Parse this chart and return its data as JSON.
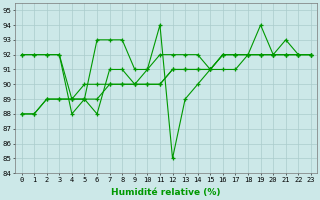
{
  "xlabel": "Humidité relative (%)",
  "ylabel": "",
  "xlim": [
    -0.5,
    23.5
  ],
  "ylim": [
    84,
    95.5
  ],
  "yticks": [
    84,
    85,
    86,
    87,
    88,
    89,
    90,
    91,
    92,
    93,
    94,
    95
  ],
  "xticks": [
    0,
    1,
    2,
    3,
    4,
    5,
    6,
    7,
    8,
    9,
    10,
    11,
    12,
    13,
    14,
    15,
    16,
    17,
    18,
    19,
    20,
    21,
    22,
    23
  ],
  "bg_color": "#cce8e8",
  "grid_color": "#aacccc",
  "line_color": "#009900",
  "lines": [
    [
      92,
      92,
      92,
      92,
      89,
      89,
      93,
      93,
      93,
      91,
      91,
      94,
      85,
      89,
      90,
      91,
      92,
      92,
      92,
      94,
      92,
      93,
      92,
      92
    ],
    [
      92,
      92,
      92,
      92,
      88,
      89,
      88,
      91,
      91,
      90,
      91,
      92,
      92,
      92,
      92,
      91,
      92,
      92,
      92,
      92,
      92,
      92,
      92,
      92
    ],
    [
      88,
      88,
      89,
      89,
      89,
      89,
      89,
      90,
      90,
      90,
      90,
      90,
      91,
      91,
      91,
      91,
      92,
      92,
      92,
      92,
      92,
      92,
      92,
      92
    ],
    [
      88,
      88,
      89,
      89,
      89,
      90,
      90,
      90,
      90,
      90,
      90,
      90,
      91,
      91,
      91,
      91,
      91,
      91,
      92,
      92,
      92,
      92,
      92,
      92
    ]
  ],
  "tick_fontsize": 5,
  "xlabel_fontsize": 6.5
}
